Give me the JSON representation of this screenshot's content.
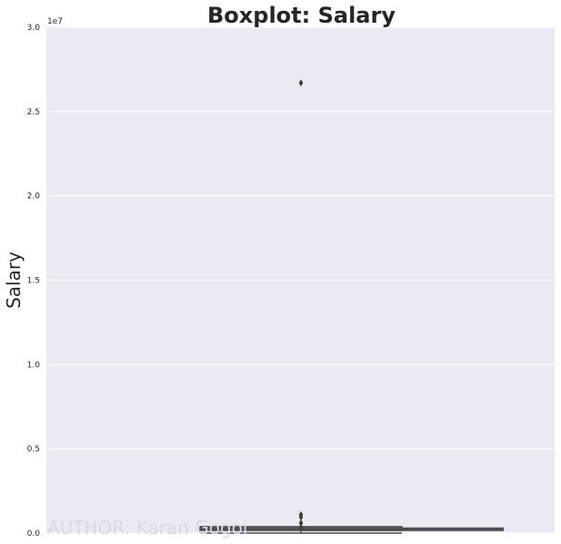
{
  "chart_data": {
    "type": "box",
    "title": "Boxplot: Salary",
    "xlabel": "",
    "ylabel": "Salary",
    "y_offset_label": "1e7",
    "ylim": [
      0,
      30000000
    ],
    "yticks": [
      0,
      5000000,
      10000000,
      15000000,
      20000000,
      25000000,
      30000000
    ],
    "ytick_labels": [
      "0.0",
      "0.5",
      "1.0",
      "1.5",
      "2.0",
      "2.5",
      "3.0"
    ],
    "grid": true,
    "background": "#eaeaf2",
    "box": {
      "q1": 160000,
      "median": 230000,
      "q3": 380000,
      "whisker_low": 0,
      "whisker_high": 440000,
      "outliers": [
        26700000,
        1100000,
        950000,
        600000,
        350000
      ],
      "color": "#4c4c4c"
    },
    "reference_line": {
      "value": 230000
    },
    "watermark": "AUTHOR: Karan Gogoi"
  }
}
